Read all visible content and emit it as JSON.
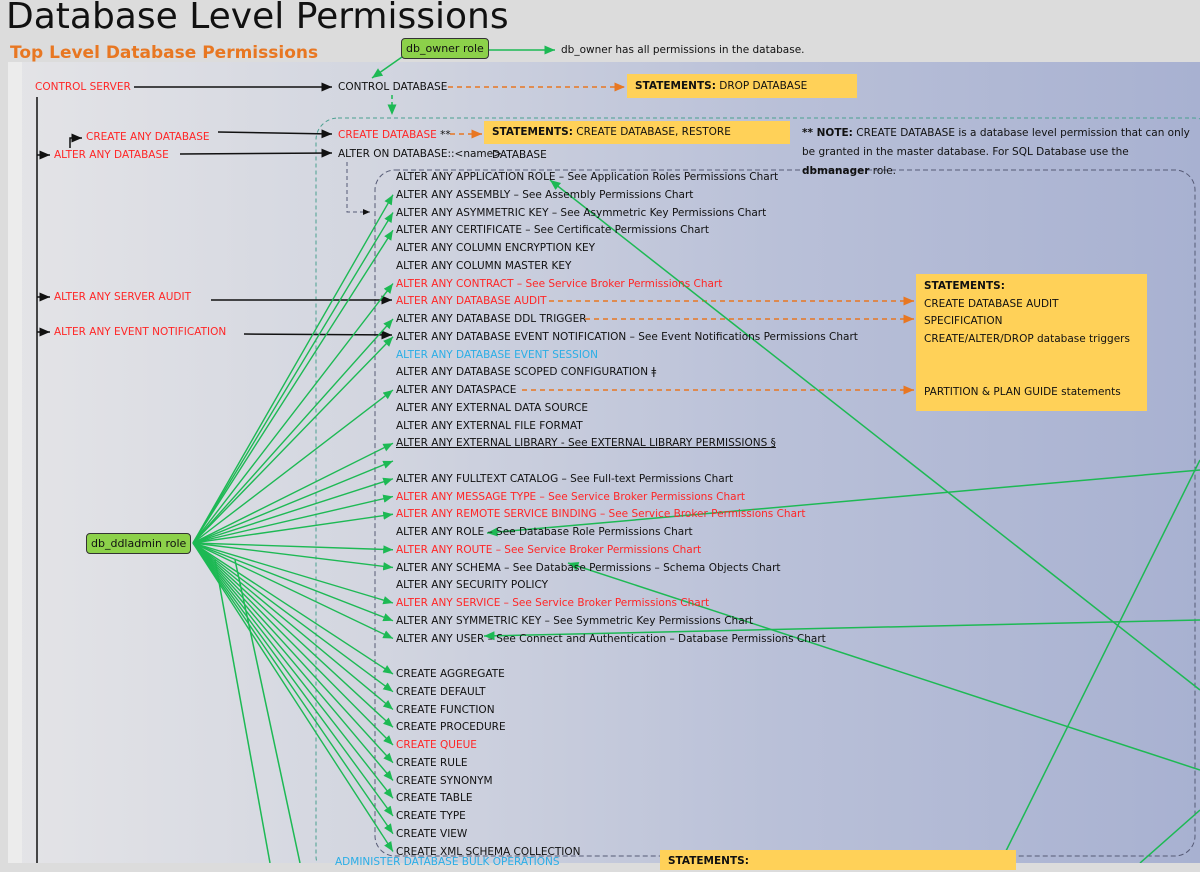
{
  "title": "Database Level Permissions",
  "subtitle": "Top Level Database Permissions",
  "roles": {
    "db_owner": "db_owner role",
    "db_ddladmin": "db_ddladmin role"
  },
  "db_owner_note": "db_owner has all permissions in the database.",
  "server_perms": {
    "control_server": "CONTROL SERVER",
    "create_any_database": "CREATE ANY DATABASE",
    "alter_any_database": "ALTER ANY DATABASE",
    "alter_any_server_audit": "ALTER ANY SERVER AUDIT",
    "alter_any_event_notification": "ALTER ANY EVENT NOTIFICATION"
  },
  "db_perms": {
    "control_database": "CONTROL DATABASE",
    "create_database": "CREATE DATABASE",
    "create_database_marker": "**",
    "alter_on_database": "ALTER ON DATABASE::<name>"
  },
  "statements": {
    "label": "STATEMENTS:",
    "drop": "DROP DATABASE",
    "create": "CREATE DATABASE, RESTORE DATABASE",
    "audit_trigger_lines": [
      "CREATE DATABASE AUDIT SPECIFICATION",
      "CREATE/ALTER/DROP database triggers"
    ],
    "partition": "PARTITION & PLAN GUIDE statements",
    "bottom_label": "STATEMENTS:"
  },
  "note": {
    "prefix": "** NOTE:",
    "text1": "CREATE DATABASE is a database level permission that can only be granted in the master database. For SQL Database use the",
    "bold": "dbmanager",
    "text2": "role."
  },
  "permissions": [
    {
      "text": "ALTER ANY APPLICATION ROLE – See Application Roles Permissions Chart",
      "color": "black"
    },
    {
      "text": "ALTER ANY ASSEMBLY – See Assembly Permissions Chart",
      "color": "black"
    },
    {
      "text": "ALTER ANY ASYMMETRIC KEY – See Asymmetric Key Permissions Chart",
      "color": "black"
    },
    {
      "text": "ALTER ANY CERTIFICATE – See Certificate Permissions Chart",
      "color": "black"
    },
    {
      "text": "ALTER ANY COLUMN ENCRYPTION KEY",
      "color": "black"
    },
    {
      "text": "ALTER ANY COLUMN MASTER KEY",
      "color": "black"
    },
    {
      "text": "ALTER ANY CONTRACT – See Service Broker Permissions Chart",
      "color": "red"
    },
    {
      "text": "ALTER ANY DATABASE AUDIT",
      "color": "red"
    },
    {
      "text": "ALTER ANY DATABASE DDL TRIGGER",
      "color": "black"
    },
    {
      "text": "ALTER ANY DATABASE EVENT NOTIFICATION – See Event Notifications Permissions Chart",
      "color": "black"
    },
    {
      "text": "ALTER ANY DATABASE EVENT SESSION",
      "color": "cyan"
    },
    {
      "text": "ALTER ANY DATABASE SCOPED CONFIGURATION ǂ",
      "color": "black"
    },
    {
      "text": "ALTER ANY DATASPACE",
      "color": "black"
    },
    {
      "text": "ALTER ANY EXTERNAL DATA SOURCE",
      "color": "black"
    },
    {
      "text": "ALTER ANY EXTERNAL FILE FORMAT",
      "color": "black"
    },
    {
      "text": "ALTER ANY EXTERNAL LIBRARY - See EXTERNAL LIBRARY PERMISSIONS §",
      "color": "black",
      "underline": true
    },
    {
      "text": "",
      "color": "black"
    },
    {
      "text": "ALTER ANY FULLTEXT CATALOG – See Full-text Permissions Chart",
      "color": "black"
    },
    {
      "text": "ALTER ANY MESSAGE TYPE – See Service Broker Permissions Chart",
      "color": "red"
    },
    {
      "text": "ALTER ANY REMOTE SERVICE BINDING – See Service Broker Permissions Chart",
      "color": "red"
    },
    {
      "text": "ALTER ANY ROLE – See Database Role Permissions Chart",
      "color": "black"
    },
    {
      "text": "ALTER ANY ROUTE – See Service Broker Permissions Chart",
      "color": "red"
    },
    {
      "text": "ALTER ANY SCHEMA – See Database Permissions – Schema Objects Chart",
      "color": "black"
    },
    {
      "text": "ALTER ANY SECURITY POLICY",
      "color": "black"
    },
    {
      "text": "ALTER ANY SERVICE – See Service Broker Permissions Chart",
      "color": "red"
    },
    {
      "text": "ALTER ANY SYMMETRIC KEY – See Symmetric Key Permissions Chart",
      "color": "black"
    },
    {
      "text": "ALTER ANY USER – See Connect and Authentication – Database Permissions Chart",
      "color": "black"
    },
    {
      "text": "",
      "color": "black"
    },
    {
      "text": "CREATE AGGREGATE",
      "color": "black"
    },
    {
      "text": "CREATE DEFAULT",
      "color": "black"
    },
    {
      "text": "CREATE FUNCTION",
      "color": "black"
    },
    {
      "text": "CREATE PROCEDURE",
      "color": "black"
    },
    {
      "text": "CREATE QUEUE",
      "color": "red"
    },
    {
      "text": "CREATE RULE",
      "color": "black"
    },
    {
      "text": "CREATE SYNONYM",
      "color": "black"
    },
    {
      "text": "CREATE TABLE",
      "color": "black"
    },
    {
      "text": "CREATE TYPE",
      "color": "black"
    },
    {
      "text": "CREATE VIEW",
      "color": "black"
    },
    {
      "text": "CREATE XML SCHEMA COLLECTION",
      "color": "black"
    }
  ],
  "bottom_item": "ADMINISTER DATABASE BULK OPERATIONS",
  "colors": {
    "red": "#ff2626",
    "cyan": "#2aaee6",
    "green": "#1db954",
    "orange": "#e87722",
    "statement_box": "#ffd158",
    "role_box": "#8cd14a"
  }
}
